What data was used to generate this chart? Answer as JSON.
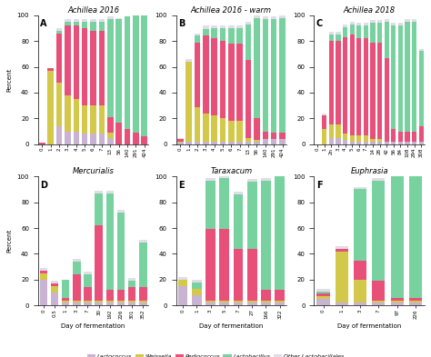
{
  "panels": [
    {
      "label": "A",
      "title": "Achillea 2016",
      "title_italic": true,
      "days": [
        "0",
        "1",
        "2",
        "3",
        "4",
        "5",
        "6",
        "7",
        "13",
        "56",
        "140",
        "291",
        "424"
      ],
      "Lactococcus": [
        0,
        0,
        14,
        8,
        8,
        8,
        8,
        8,
        5,
        0,
        0,
        0,
        0
      ],
      "Weissella": [
        0,
        57,
        32,
        25,
        25,
        22,
        22,
        20,
        2,
        0,
        0,
        0,
        0
      ],
      "Pediococcus": [
        1,
        1,
        40,
        56,
        57,
        60,
        58,
        60,
        12,
        17,
        12,
        8,
        6
      ],
      "Lactobacillus": [
        0,
        0,
        2,
        2,
        2,
        4,
        5,
        5,
        76,
        78,
        88,
        92,
        94
      ],
      "Other": [
        0,
        0,
        0,
        2,
        2,
        2,
        2,
        2,
        2,
        1,
        0,
        0,
        0
      ]
    },
    {
      "label": "B",
      "title": "Achillea 2016 - warm",
      "title_italic": true,
      "days": [
        "0",
        "1",
        "2",
        "3",
        "4",
        "5",
        "6",
        "7",
        "13",
        "56",
        "140",
        "291",
        "424"
      ],
      "Lactococcus": [
        1,
        2,
        2,
        2,
        2,
        2,
        2,
        2,
        2,
        2,
        4,
        4,
        4
      ],
      "Weissella": [
        1,
        62,
        27,
        22,
        20,
        18,
        16,
        16,
        3,
        0,
        0,
        0,
        0
      ],
      "Pediococcus": [
        1,
        0,
        50,
        60,
        60,
        60,
        60,
        60,
        60,
        20,
        7,
        6,
        5
      ],
      "Lactobacillus": [
        0,
        0,
        5,
        5,
        8,
        10,
        12,
        12,
        28,
        76,
        87,
        88,
        89
      ],
      "Other": [
        1,
        2,
        2,
        3,
        2,
        2,
        2,
        2,
        2,
        2,
        2,
        2,
        2
      ]
    },
    {
      "label": "C",
      "title": "Achillea 2018",
      "title_italic": true,
      "days": [
        "0",
        "1",
        "2n",
        "3",
        "4",
        "5",
        "6",
        "7",
        "14",
        "28",
        "42",
        "56",
        "84",
        "108",
        "294",
        "308"
      ],
      "Lactococcus": [
        0,
        0,
        5,
        5,
        3,
        2,
        2,
        2,
        2,
        2,
        2,
        2,
        2,
        2,
        2,
        2
      ],
      "Weissella": [
        0,
        12,
        10,
        10,
        5,
        5,
        5,
        5,
        2,
        2,
        0,
        0,
        0,
        0,
        0,
        0
      ],
      "Pediococcus": [
        0,
        10,
        65,
        65,
        75,
        78,
        75,
        75,
        75,
        75,
        65,
        10,
        8,
        8,
        8,
        12
      ],
      "Lactobacillus": [
        0,
        0,
        5,
        5,
        8,
        8,
        10,
        10,
        15,
        15,
        28,
        80,
        82,
        85,
        85,
        58
      ],
      "Other": [
        0,
        2,
        2,
        2,
        2,
        2,
        2,
        2,
        2,
        2,
        2,
        2,
        2,
        2,
        2,
        2
      ]
    },
    {
      "label": "D",
      "title": "Mercurialis",
      "title_italic": true,
      "days": [
        "0",
        "0.5",
        "1",
        "3",
        "7",
        "30",
        "192",
        "226",
        "301",
        "352"
      ],
      "Lactococcus": [
        20,
        10,
        2,
        2,
        2,
        2,
        2,
        2,
        2,
        2
      ],
      "Weissella": [
        5,
        5,
        2,
        2,
        2,
        2,
        2,
        2,
        2,
        2
      ],
      "Pediococcus": [
        2,
        2,
        2,
        20,
        10,
        57,
        8,
        8,
        10,
        10
      ],
      "Lactobacillus": [
        0,
        0,
        14,
        10,
        10,
        25,
        75,
        60,
        5,
        35
      ],
      "Other": [
        2,
        2,
        0,
        2,
        2,
        2,
        2,
        2,
        2,
        2
      ]
    },
    {
      "label": "E",
      "title": "Taraxacum",
      "title_italic": true,
      "days": [
        "0",
        "1",
        "3",
        "5",
        "7",
        "27",
        "166",
        "322"
      ],
      "Lactococcus": [
        15,
        8,
        2,
        2,
        2,
        2,
        2,
        2
      ],
      "Weissella": [
        5,
        5,
        2,
        2,
        2,
        2,
        2,
        2
      ],
      "Pediococcus": [
        0,
        0,
        55,
        55,
        40,
        40,
        8,
        8
      ],
      "Lactobacillus": [
        0,
        5,
        38,
        40,
        42,
        52,
        85,
        88
      ],
      "Other": [
        2,
        2,
        2,
        2,
        2,
        2,
        2,
        2
      ]
    },
    {
      "label": "F",
      "title": "Euphrasia",
      "title_italic": true,
      "days": [
        "0",
        "1",
        "3",
        "7",
        "97",
        "226"
      ],
      "Lactococcus": [
        5,
        2,
        2,
        2,
        2,
        2
      ],
      "Weissella": [
        2,
        40,
        18,
        2,
        2,
        2
      ],
      "Pediococcus": [
        2,
        2,
        15,
        15,
        2,
        2
      ],
      "Lactobacillus": [
        2,
        0,
        55,
        78,
        94,
        94
      ],
      "Other": [
        2,
        2,
        2,
        2,
        2,
        2
      ]
    }
  ],
  "colors": {
    "Lactococcus": "#c8b4d2",
    "Weissella": "#d4c84a",
    "Pediococcus": "#e8507a",
    "Lactobacillus": "#78d2a0",
    "Other": "#e0dce8"
  }
}
